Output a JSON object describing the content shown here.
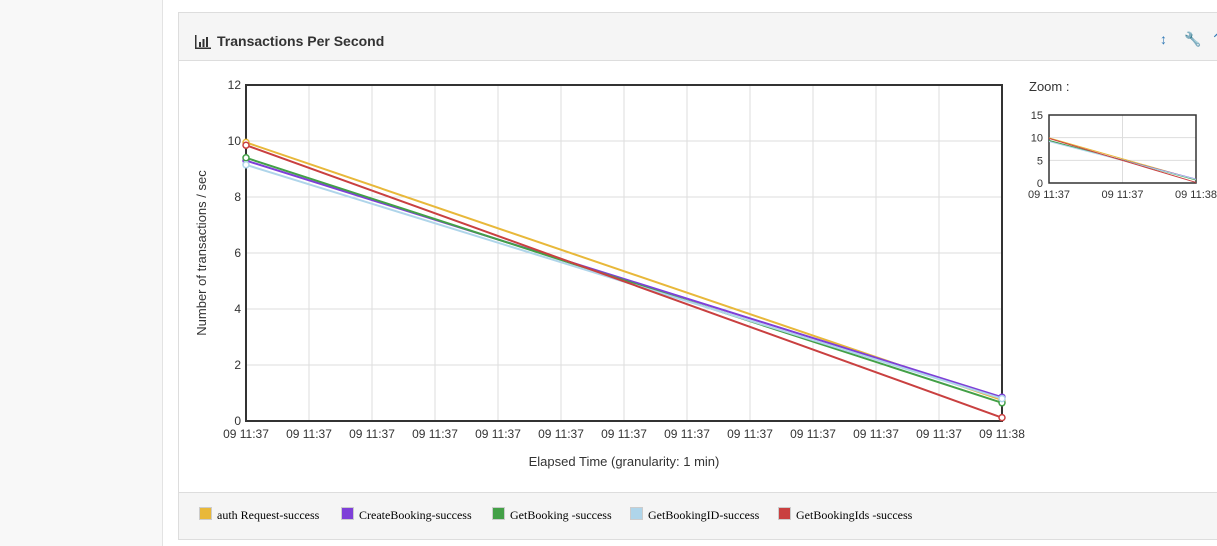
{
  "panel": {
    "title": "Transactions Per Second",
    "tools": [
      "resize-icon",
      "wrench-icon",
      "chevron-up-icon"
    ]
  },
  "zoom": {
    "label": "Zoom :",
    "y_ticks": [
      "15",
      "10",
      "5",
      "0"
    ],
    "x_ticks": [
      "09 11:37",
      "09 11:37",
      "09 11:38"
    ]
  },
  "chart_data": {
    "type": "line",
    "title": "Transactions Per Second",
    "xlabel": "Elapsed Time (granularity: 1 min)",
    "ylabel": "Number of transactions / sec",
    "ylim": [
      0,
      12
    ],
    "y_ticks": [
      "0",
      "2",
      "4",
      "6",
      "8",
      "10",
      "12"
    ],
    "x_tick_labels": [
      "09 11:37",
      "09 11:37",
      "09 11:37",
      "09 11:37",
      "09 11:37",
      "09 11:37",
      "09 11:37",
      "09 11:37",
      "09 11:37",
      "09 11:37",
      "09 11:37",
      "09 11:37",
      "09 11:38"
    ],
    "x": [
      "09 11:37",
      "09 11:38"
    ],
    "grid": true,
    "legend_position": "bottom",
    "series": [
      {
        "name": "auth Request-success",
        "color": "#E8B83A",
        "values": [
          9.95,
          0.75
        ]
      },
      {
        "name": "CreateBooking-success",
        "color": "#7E3FD8",
        "values": [
          9.3,
          0.85
        ]
      },
      {
        "name": "GetBooking -success",
        "color": "#43A047",
        "values": [
          9.4,
          0.65
        ]
      },
      {
        "name": "GetBookingID-success",
        "color": "#AFD5EA",
        "values": [
          9.15,
          0.8
        ]
      },
      {
        "name": "GetBookingIds -success",
        "color": "#C94040",
        "values": [
          9.85,
          0.12
        ]
      }
    ]
  }
}
